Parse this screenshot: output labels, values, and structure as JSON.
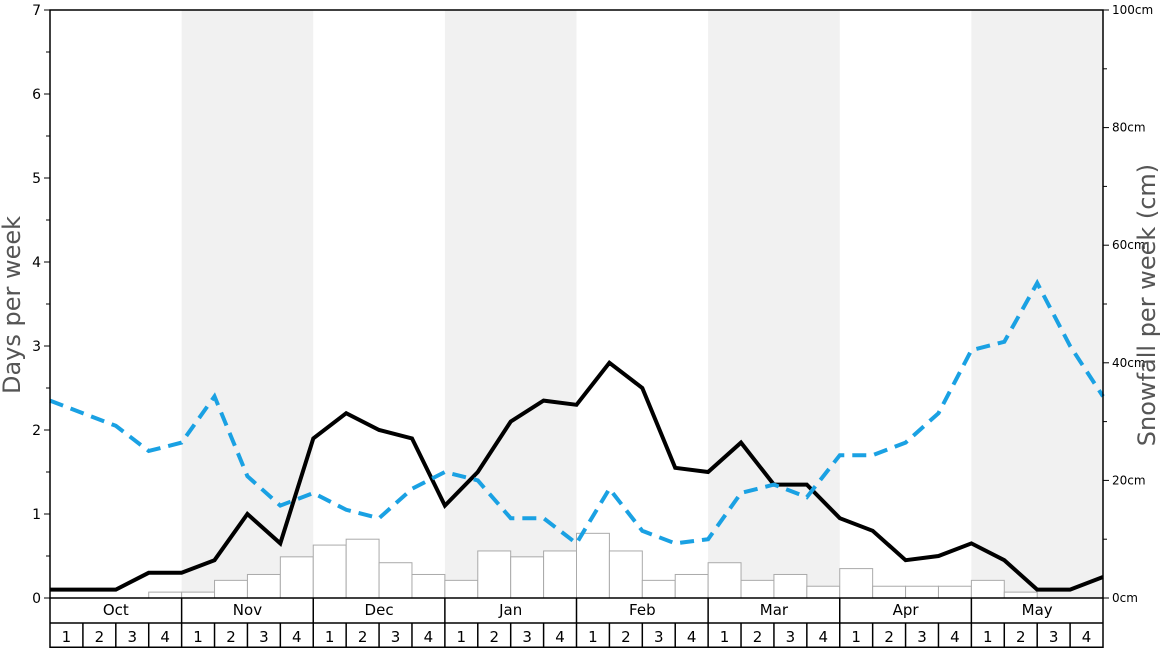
{
  "chart_data": {
    "type": "bar",
    "ylabel": "Days per week",
    "y2label": "Snowfall per week (cm)",
    "ylim": [
      0,
      7
    ],
    "y_ticks": [
      "0",
      "1",
      "2",
      "3",
      "4",
      "5",
      "6",
      "7"
    ],
    "y2lim": [
      0,
      100
    ],
    "y2_ticks": [
      "0cm",
      "20cm",
      "40cm",
      "60cm",
      "80cm",
      "100cm"
    ],
    "months": [
      "Oct",
      "Nov",
      "Dec",
      "Jan",
      "Feb",
      "Mar",
      "Apr",
      "May"
    ],
    "week_labels": [
      "1",
      "2",
      "3",
      "4"
    ],
    "series": [
      {
        "type": "bar",
        "axis": "right",
        "values": [
          0,
          0,
          0,
          1,
          1,
          3,
          4,
          7,
          9,
          10,
          6,
          4,
          3,
          8,
          7,
          8,
          11,
          8,
          3,
          4,
          6,
          3,
          4,
          2,
          5,
          2,
          2,
          2,
          3,
          1,
          0,
          0
        ]
      },
      {
        "type": "line",
        "axis": "left",
        "values": [
          0.1,
          0.1,
          0.1,
          0.3,
          0.3,
          0.45,
          1.0,
          0.65,
          1.9,
          2.2,
          2.0,
          1.9,
          1.1,
          1.5,
          2.1,
          2.35,
          2.3,
          2.8,
          2.5,
          1.55,
          1.5,
          1.85,
          1.35,
          1.35,
          0.95,
          0.8,
          0.45,
          0.5,
          0.65,
          0.45,
          0.1,
          0.1,
          0.25
        ]
      },
      {
        "type": "line",
        "axis": "left",
        "dashed": true,
        "values": [
          2.35,
          2.2,
          2.05,
          1.75,
          1.85,
          2.4,
          1.45,
          1.1,
          1.25,
          1.05,
          0.95,
          1.3,
          1.5,
          1.4,
          0.95,
          0.95,
          0.65,
          1.3,
          0.8,
          0.65,
          0.7,
          1.25,
          1.35,
          1.2,
          1.7,
          1.7,
          1.85,
          2.2,
          2.95,
          3.05,
          3.75,
          3.0,
          2.4
        ]
      }
    ],
    "colors": {
      "solid_line": "#000000",
      "dashed_line": "#1aa1e3",
      "bars": "#ffffff",
      "bar_stroke": "#aaaaaa",
      "band": "#f1f1f1",
      "axis_text": "#555555"
    }
  }
}
